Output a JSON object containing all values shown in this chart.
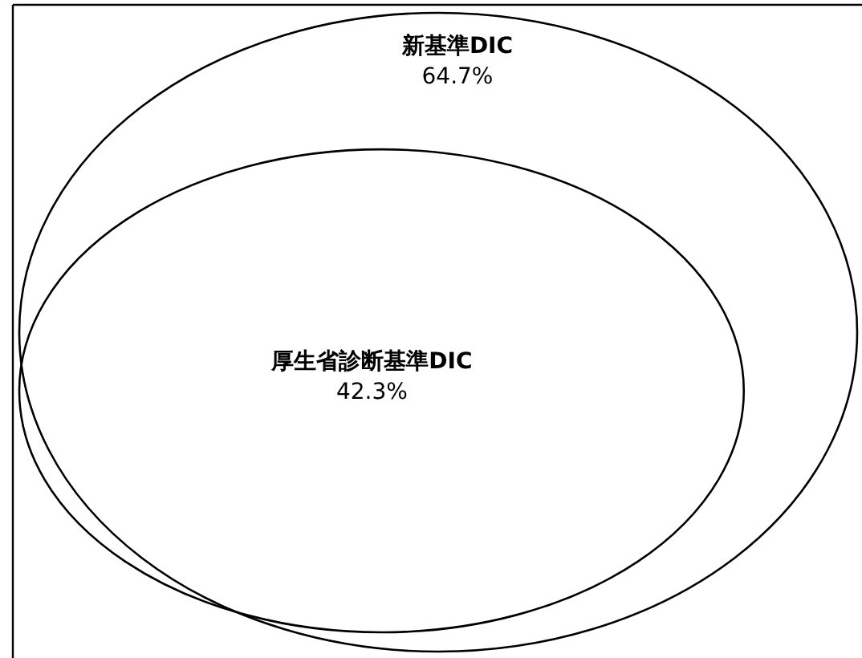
{
  "chart_data": {
    "type": "other",
    "categories": [
      "新基準DIC",
      "厚生省診断基準DIC"
    ],
    "values": [
      64.7,
      42.3
    ],
    "value_labels": [
      "64.7%",
      "42.3%"
    ]
  }
}
